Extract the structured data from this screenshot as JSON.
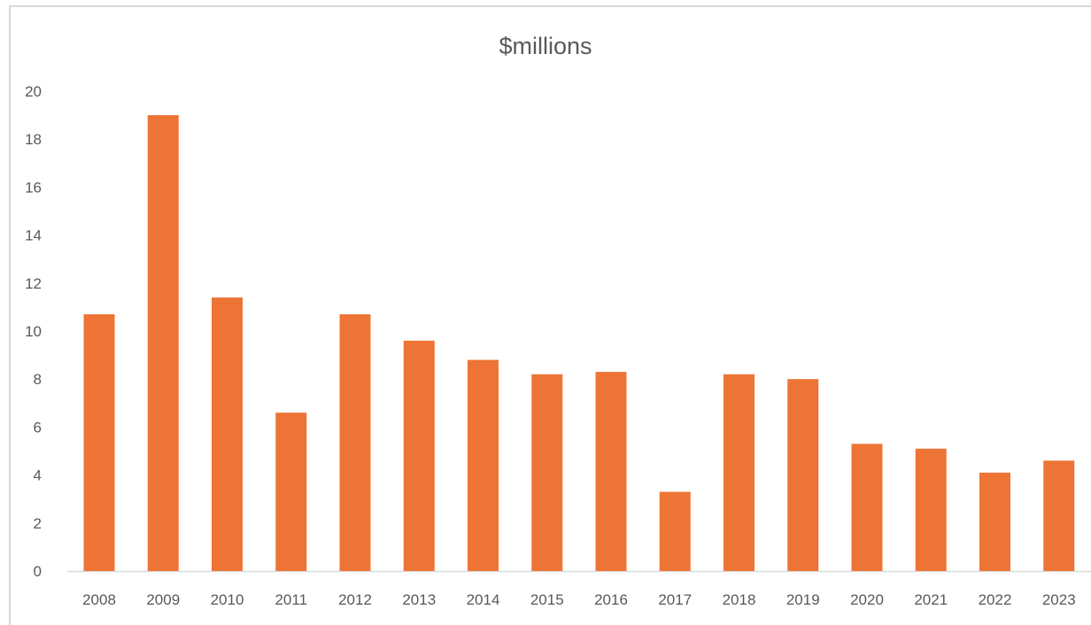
{
  "chart_data": {
    "type": "bar",
    "title": "$millions",
    "xlabel": "",
    "ylabel": "",
    "categories": [
      "2008",
      "2009",
      "2010",
      "2011",
      "2012",
      "2013",
      "2014",
      "2015",
      "2016",
      "2017",
      "2018",
      "2019",
      "2020",
      "2021",
      "2022",
      "2023"
    ],
    "values": [
      10.7,
      19.0,
      11.4,
      6.6,
      10.7,
      9.6,
      8.8,
      8.2,
      8.3,
      3.3,
      8.2,
      8.0,
      5.3,
      5.1,
      4.1,
      4.6
    ],
    "ylim": [
      0,
      20
    ],
    "yticks": [
      "0",
      "2",
      "4",
      "6",
      "8",
      "10",
      "12",
      "14",
      "16",
      "18",
      "20"
    ],
    "grid": false,
    "legend": "none",
    "bar_color": "#ED7435",
    "axis_color": "#d9d9d9",
    "text_color": "#595959"
  }
}
